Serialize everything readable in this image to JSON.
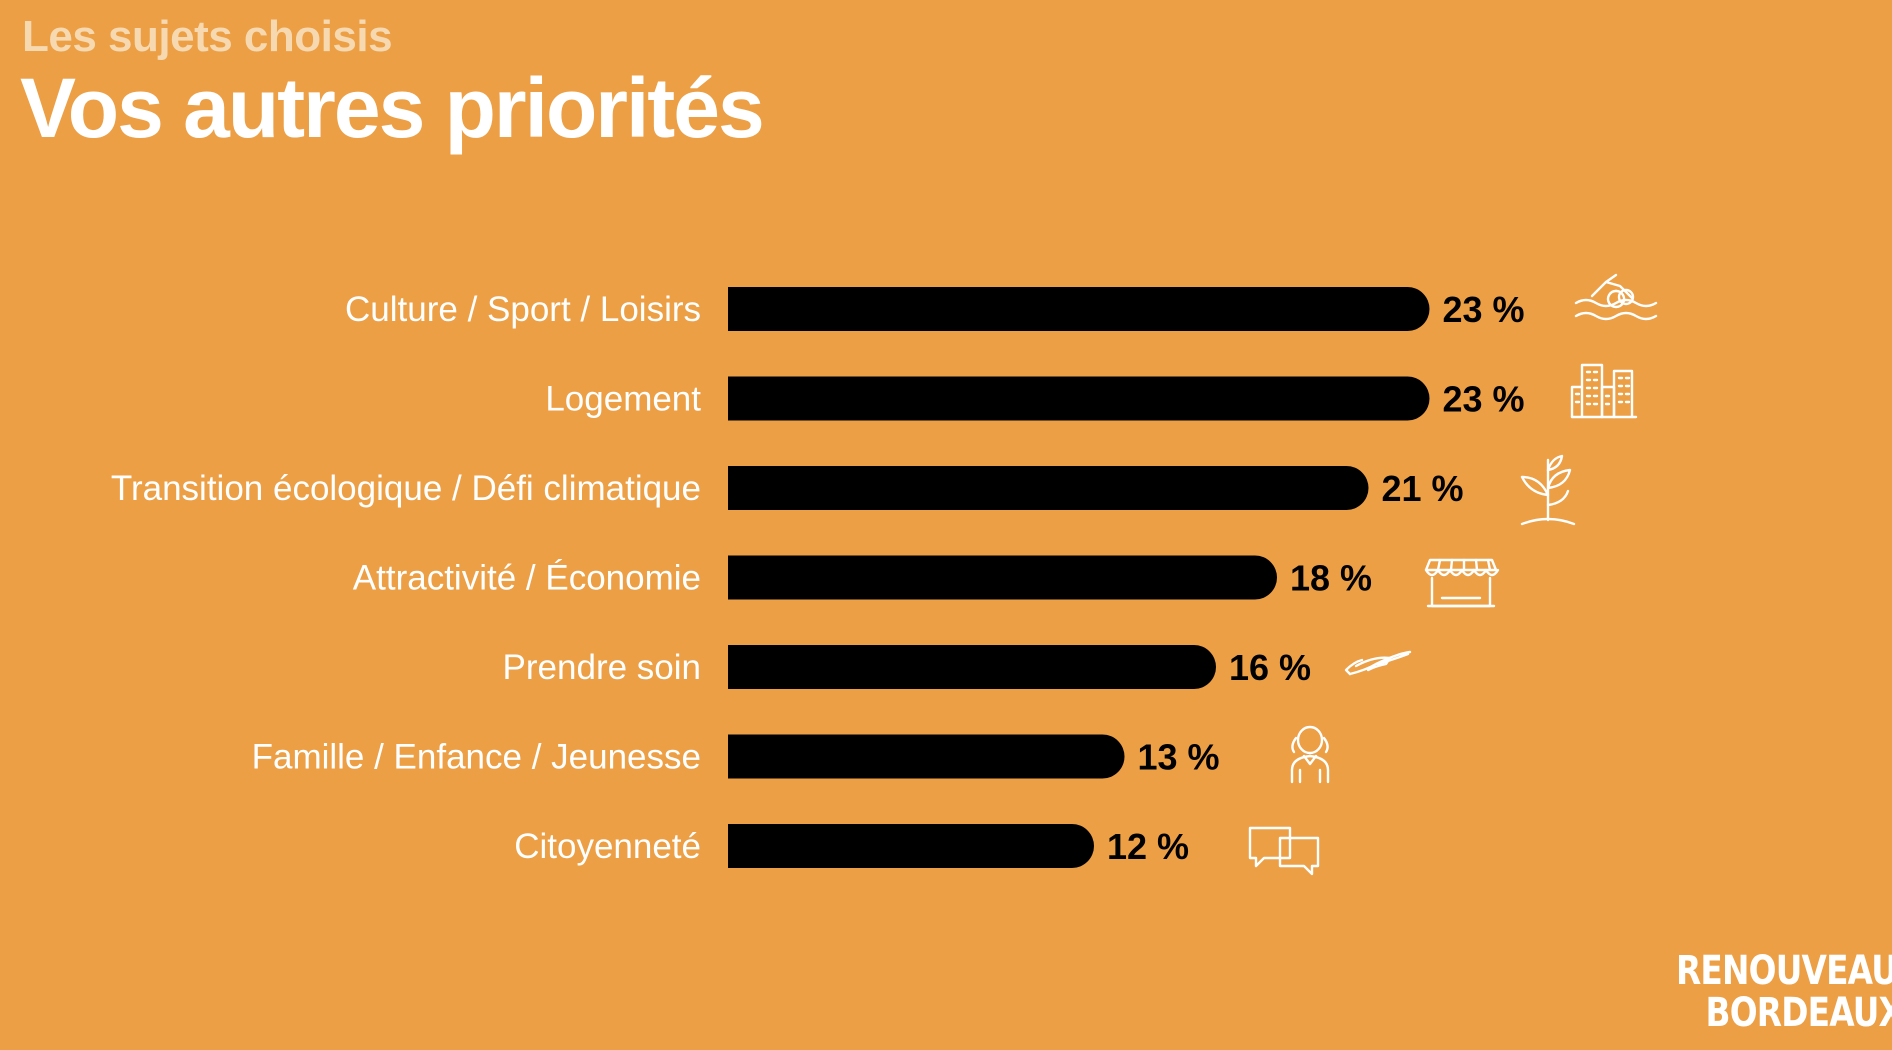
{
  "header": {
    "subtitle": "Les sujets choisis",
    "title": "Vos autres priorités"
  },
  "chart_data": {
    "type": "bar",
    "orientation": "horizontal",
    "categories": [
      "Culture / Sport / Loisirs",
      "Logement",
      "Transition écologique / Défi climatique",
      "Attractivité / Économie",
      "Prendre soin",
      "Famille / Enfance / Jeunesse",
      "Citoyenneté"
    ],
    "values": [
      23,
      23,
      21,
      18,
      16,
      13,
      12
    ],
    "value_labels": [
      "23 %",
      "23 %",
      "21 %",
      "18 %",
      "16 %",
      "13 %",
      "12 %"
    ],
    "icons": [
      "swimmer-icon",
      "buildings-icon",
      "plant-icon",
      "shop-icon",
      "hand-icon",
      "child-icon",
      "speech-bubbles-icon"
    ],
    "bar_color": "#000000",
    "background": "#EC9F44",
    "grid": false,
    "legend": "none"
  },
  "logo": {
    "line1": "RENOUVEAU",
    "line2": "BORDEAUX"
  }
}
